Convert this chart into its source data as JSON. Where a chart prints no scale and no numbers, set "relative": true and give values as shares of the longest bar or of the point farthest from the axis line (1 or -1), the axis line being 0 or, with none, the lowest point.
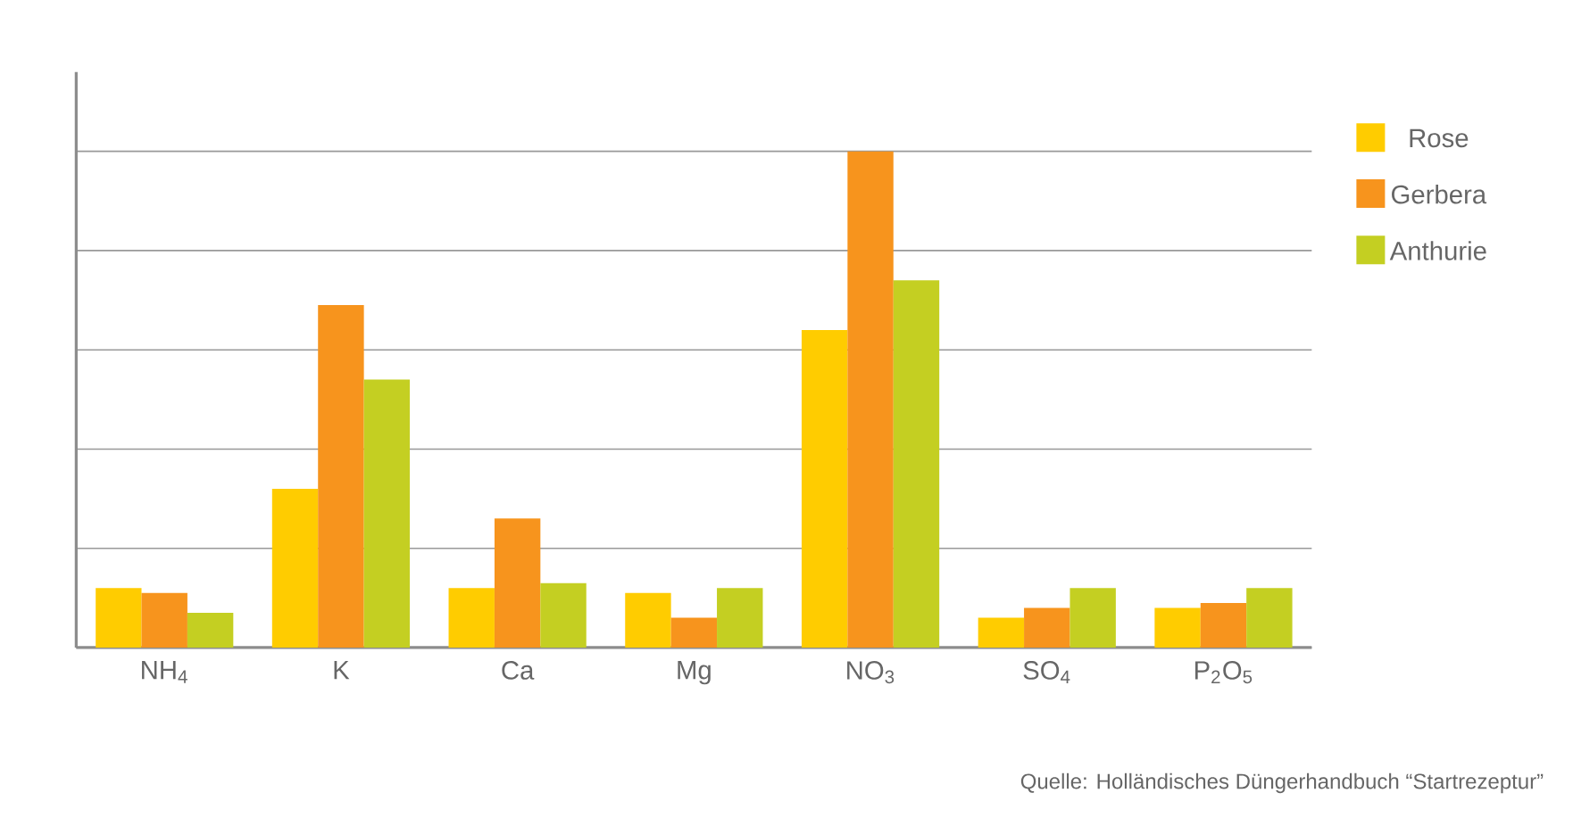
{
  "chart_data": {
    "type": "bar",
    "relative": true,
    "categories": [
      "NH$_{4}$",
      "K",
      "Ca",
      "Mg",
      "NO$_{3}$",
      "SO$_{4}$",
      "P$_{2}$O$_{5}$"
    ],
    "series": [
      {
        "name": "Rose",
        "color": "#ffcc00",
        "values": [
          0.12,
          0.32,
          0.12,
          0.11,
          0.64,
          0.06,
          0.08
        ]
      },
      {
        "name": "Gerbera",
        "color": "#f7941d",
        "values": [
          0.11,
          0.69,
          0.26,
          0.06,
          1,
          0.08,
          0.09
        ]
      },
      {
        "name": "Anthurie",
        "color": "#c4cf22",
        "values": [
          0.07,
          0.54,
          0.13,
          0.12,
          0.74,
          0.12,
          0.12
        ]
      }
    ],
    "grid": "y",
    "legend": "right",
    "annotations": [
      "Quelle: Holländisches Düngerhandbuch “Startrezeptur”"
    ]
  }
}
